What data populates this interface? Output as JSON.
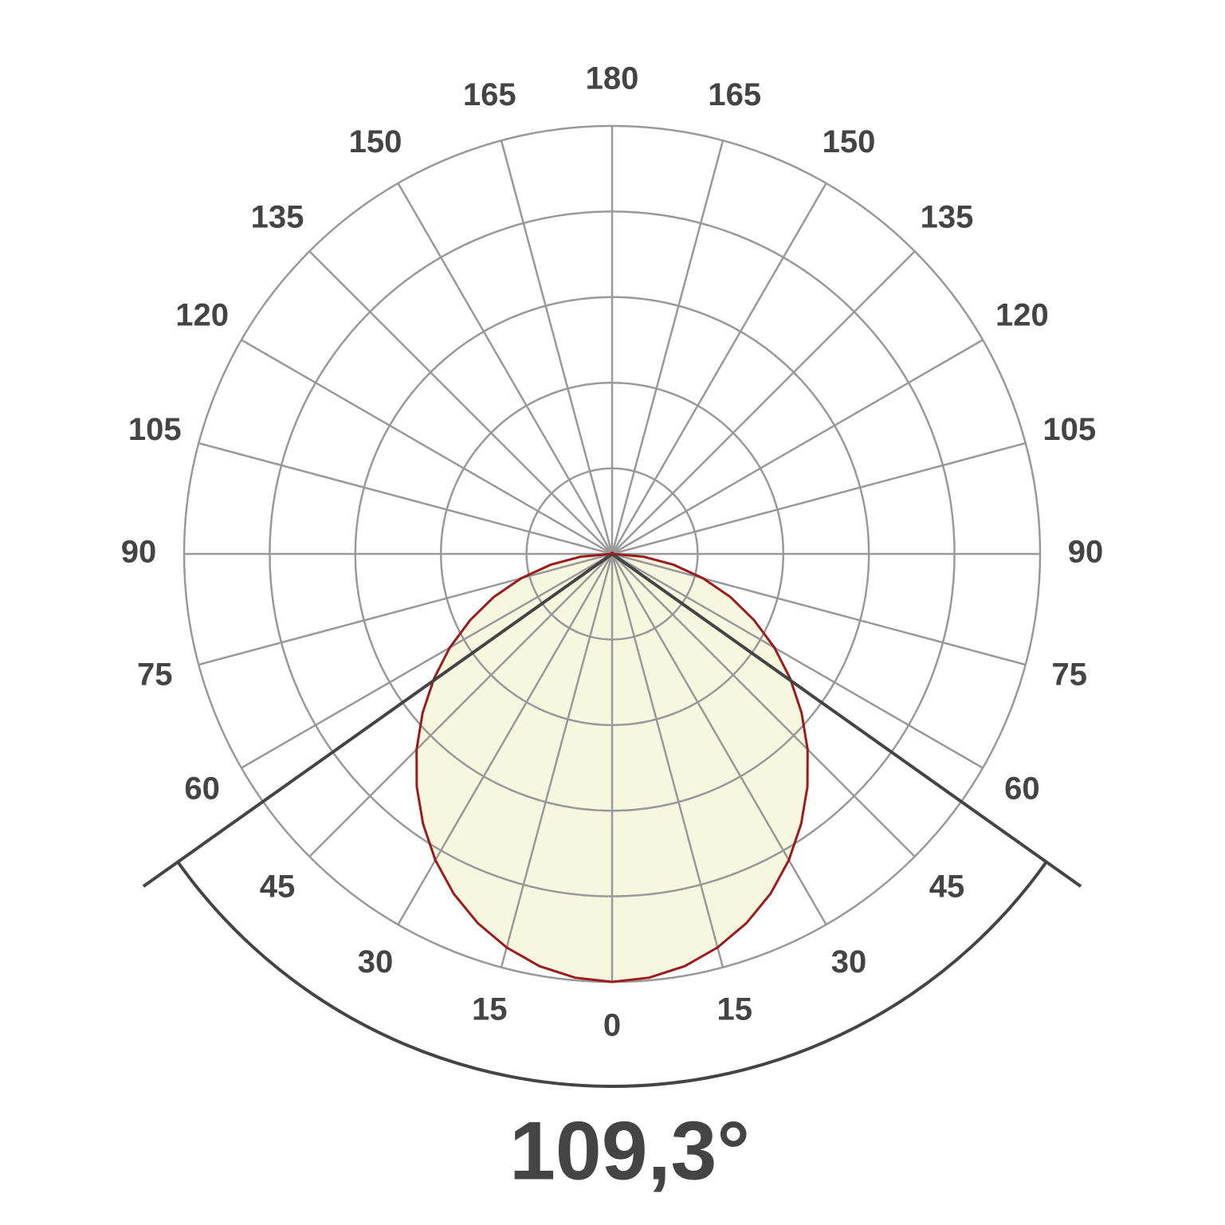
{
  "chart_data": {
    "type": "polar",
    "theta": [
      -90,
      -85,
      -80,
      -75,
      -70,
      -65,
      -60,
      -55,
      -50,
      -45,
      -40,
      -35,
      -30,
      -25,
      -20,
      -15,
      -10,
      -5,
      0,
      5,
      10,
      15,
      20,
      25,
      30,
      35,
      40,
      45,
      50,
      55,
      60,
      65,
      70,
      75,
      80,
      85,
      90
    ],
    "series": [
      {
        "color": "#9b1c1c",
        "fill": "#f7f7e0",
        "values": [
          0,
          0.37,
          0.73,
          1.1,
          1.47,
          1.83,
          2.19,
          2.54,
          2.89,
          3.23,
          3.55,
          3.85,
          4.13,
          4.38,
          4.59,
          4.76,
          4.89,
          4.97,
          5.0,
          4.97,
          4.89,
          4.76,
          4.59,
          4.38,
          4.13,
          3.85,
          3.55,
          3.23,
          2.89,
          2.54,
          2.19,
          1.83,
          1.47,
          1.1,
          0.73,
          0.37,
          0
        ]
      }
    ],
    "rlim": [
      0,
      5
    ],
    "rticks": [
      1,
      2,
      3,
      4,
      5
    ],
    "thetaticks": [
      {
        "value": -165,
        "label": "165"
      },
      {
        "value": -150,
        "label": "150"
      },
      {
        "value": -135,
        "label": "135"
      },
      {
        "value": -120,
        "label": "120"
      },
      {
        "value": -105,
        "label": "105"
      },
      {
        "value": -90,
        "label": "90"
      },
      {
        "value": -75,
        "label": "75"
      },
      {
        "value": -60,
        "label": "60"
      },
      {
        "value": -45,
        "label": "45"
      },
      {
        "value": -30,
        "label": "30"
      },
      {
        "value": -15,
        "label": "15"
      },
      0,
      15,
      30,
      45,
      60,
      75,
      90,
      105,
      120,
      135,
      150,
      165,
      180
    ],
    "beam_angle": {
      "value": 109.3,
      "label": "109,3°"
    },
    "grid": true
  }
}
